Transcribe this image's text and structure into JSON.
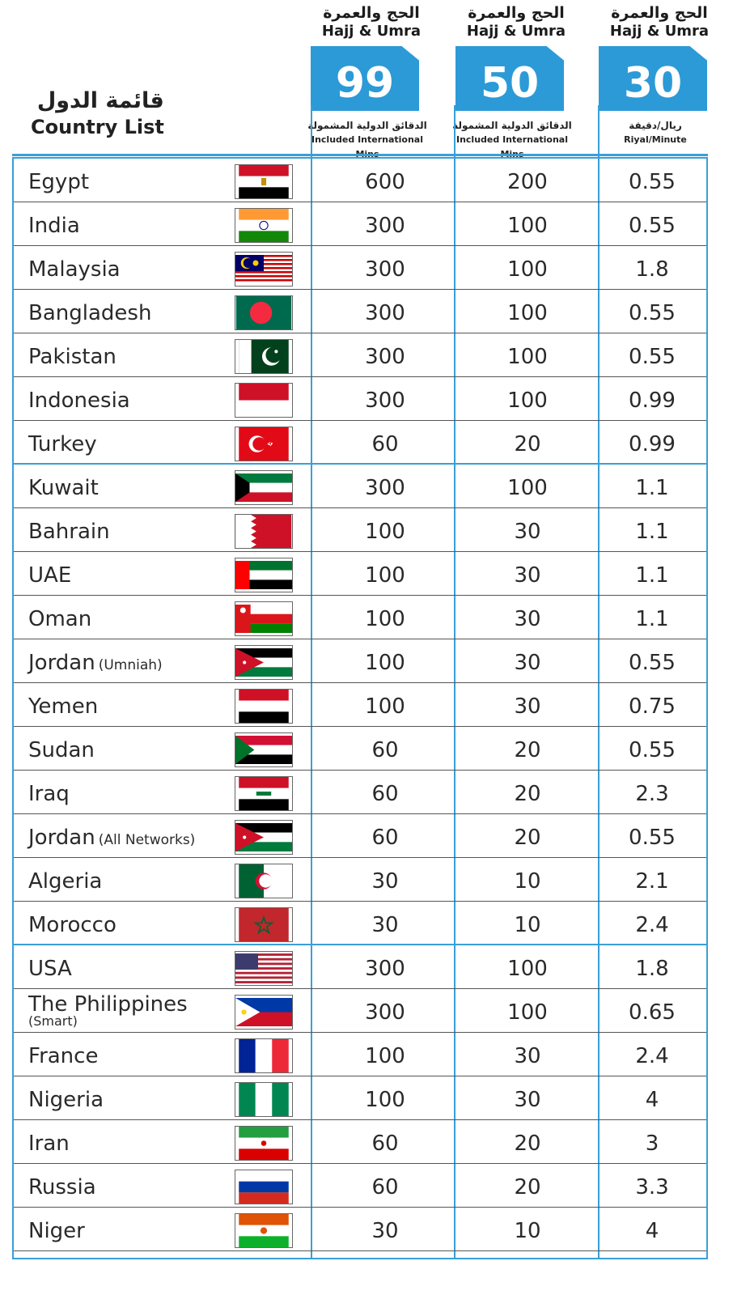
{
  "header": {
    "list_title_ar": "قائمة الدول",
    "list_title_en": "Country List"
  },
  "plans": [
    {
      "title_ar": "الحج والعمرة",
      "title_en": "Hajj & Umra",
      "price": "99",
      "sub_ar": "الدقائق الدولية المشمولة",
      "sub_en": "Included International Mins"
    },
    {
      "title_ar": "الحج والعمرة",
      "title_en": "Hajj & Umra",
      "price": "50",
      "sub_ar": "الدقائق الدولية المشمولة",
      "sub_en": "Included International Mins"
    },
    {
      "title_ar": "الحج والعمرة",
      "title_en": "Hajj & Umra",
      "price": "30",
      "sub_ar": "ريال/دقيقة",
      "sub_en": "Riyal/Minute"
    }
  ],
  "rows": [
    {
      "name": "Egypt",
      "note": "",
      "flag": "egypt-flag",
      "v99": "600",
      "v50": "200",
      "rate": "0.55"
    },
    {
      "name": "India",
      "note": "",
      "flag": "india-flag",
      "v99": "300",
      "v50": "100",
      "rate": "0.55"
    },
    {
      "name": "Malaysia",
      "note": "",
      "flag": "malaysia-flag",
      "v99": "300",
      "v50": "100",
      "rate": "1.8"
    },
    {
      "name": "Bangladesh",
      "note": "",
      "flag": "bangladesh-flag",
      "v99": "300",
      "v50": "100",
      "rate": "0.55"
    },
    {
      "name": "Pakistan",
      "note": "",
      "flag": "pakistan-flag",
      "v99": "300",
      "v50": "100",
      "rate": "0.55"
    },
    {
      "name": "Indonesia",
      "note": "",
      "flag": "indonesia-flag",
      "v99": "300",
      "v50": "100",
      "rate": "0.99"
    },
    {
      "name": "Turkey",
      "note": "",
      "flag": "turkey-flag",
      "v99": "60",
      "v50": "20",
      "rate": "0.99"
    },
    {
      "name": "Kuwait",
      "note": "",
      "flag": "kuwait-flag",
      "v99": "300",
      "v50": "100",
      "rate": "1.1"
    },
    {
      "name": "Bahrain",
      "note": "",
      "flag": "bahrain-flag",
      "v99": "100",
      "v50": "30",
      "rate": "1.1"
    },
    {
      "name": "UAE",
      "note": "",
      "flag": "uae-flag",
      "v99": "100",
      "v50": "30",
      "rate": "1.1"
    },
    {
      "name": "Oman",
      "note": "",
      "flag": "oman-flag",
      "v99": "100",
      "v50": "30",
      "rate": "1.1"
    },
    {
      "name": "Jordan",
      "note": "(Umniah)",
      "flag": "jordan-flag",
      "v99": "100",
      "v50": "30",
      "rate": "0.55"
    },
    {
      "name": "Yemen",
      "note": "",
      "flag": "yemen-flag",
      "v99": "100",
      "v50": "30",
      "rate": "0.75"
    },
    {
      "name": "Sudan",
      "note": "",
      "flag": "sudan-flag",
      "v99": "60",
      "v50": "20",
      "rate": "0.55"
    },
    {
      "name": "Iraq",
      "note": "",
      "flag": "iraq-flag",
      "v99": "60",
      "v50": "20",
      "rate": "2.3"
    },
    {
      "name": "Jordan",
      "note": "(All Networks)",
      "flag": "jordan-flag",
      "v99": "60",
      "v50": "20",
      "rate": "0.55"
    },
    {
      "name": "Algeria",
      "note": "",
      "flag": "algeria-flag",
      "v99": "30",
      "v50": "10",
      "rate": "2.1"
    },
    {
      "name": "Morocco",
      "note": "",
      "flag": "morocco-flag",
      "v99": "30",
      "v50": "10",
      "rate": "2.4"
    },
    {
      "name": "USA",
      "note": "",
      "flag": "usa-flag",
      "v99": "300",
      "v50": "100",
      "rate": "1.8"
    },
    {
      "name": "The Philippines",
      "note": "(Smart)",
      "flag": "philippines-flag",
      "v99": "300",
      "v50": "100",
      "rate": "0.65"
    },
    {
      "name": "France",
      "note": "",
      "flag": "france-flag",
      "v99": "100",
      "v50": "30",
      "rate": "2.4"
    },
    {
      "name": "Nigeria",
      "note": "",
      "flag": "nigeria-flag",
      "v99": "100",
      "v50": "30",
      "rate": "4"
    },
    {
      "name": "Iran",
      "note": "",
      "flag": "iran-flag",
      "v99": "60",
      "v50": "20",
      "rate": "3"
    },
    {
      "name": "Russia",
      "note": "",
      "flag": "russia-flag",
      "v99": "60",
      "v50": "20",
      "rate": "3.3"
    },
    {
      "name": "Niger",
      "note": "",
      "flag": "niger-flag",
      "v99": "30",
      "v50": "10",
      "rate": "4"
    }
  ],
  "colors": {
    "accent": "#2c9ad7",
    "border": "#3a9fd8"
  }
}
